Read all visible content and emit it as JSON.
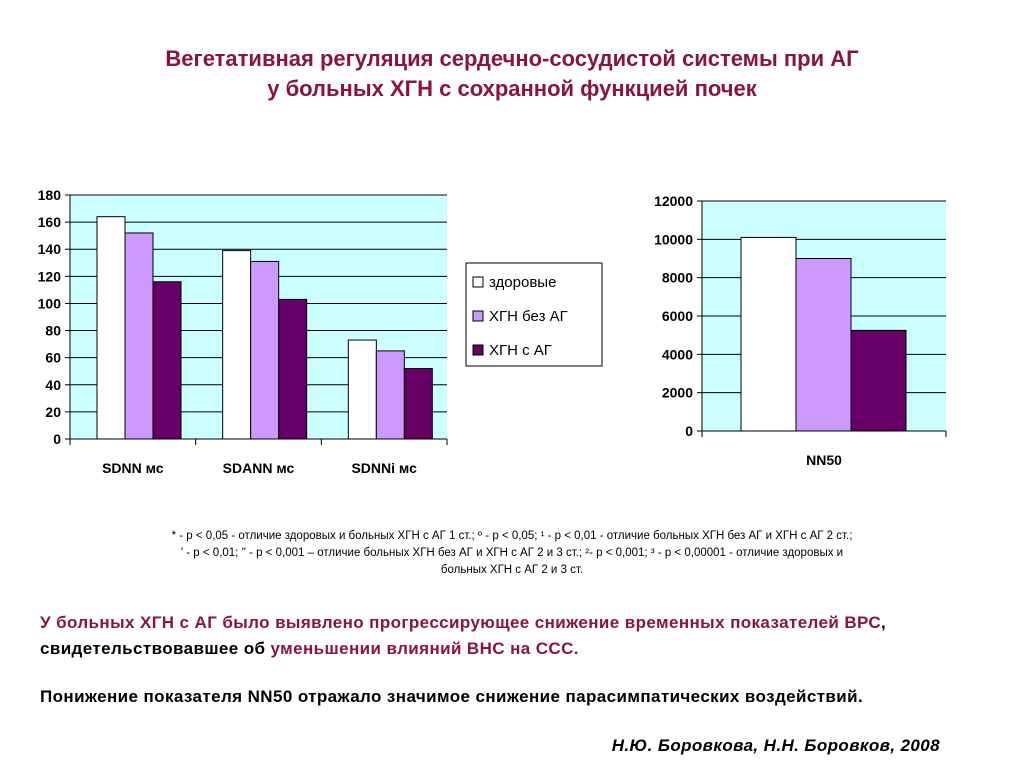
{
  "title": {
    "line1": "Вегетативная регуляция сердечно-сосудистой системы при АГ",
    "line2": "у больных ХГН с сохранной функцией почек"
  },
  "colors": {
    "title": "#8a1538",
    "plot_bg": "#ccffff",
    "healthy": "#ffffff",
    "hgn_no_ag": "#cc99ff",
    "hgn_ag": "#660066"
  },
  "chart_data": [
    {
      "type": "bar",
      "categories": [
        "SDNN мс",
        "SDANN мс",
        "SDNNi мс"
      ],
      "series": [
        {
          "name": "здоровые",
          "values": [
            164,
            139,
            73
          ]
        },
        {
          "name": "ХГН без АГ",
          "values": [
            152,
            131,
            65
          ]
        },
        {
          "name": "ХГН с АГ",
          "values": [
            116,
            103,
            52
          ]
        }
      ],
      "ylim": [
        0,
        180
      ],
      "yticks": [
        0,
        20,
        40,
        60,
        80,
        100,
        120,
        140,
        160,
        180
      ],
      "grid": true,
      "legend": "right"
    },
    {
      "type": "bar",
      "categories": [
        "NN50"
      ],
      "series": [
        {
          "name": "здоровые",
          "values": [
            10100
          ]
        },
        {
          "name": "ХГН без АГ",
          "values": [
            9000
          ]
        },
        {
          "name": "ХГН с АГ",
          "values": [
            5250
          ]
        }
      ],
      "ylim": [
        0,
        12000
      ],
      "yticks": [
        0,
        2000,
        4000,
        6000,
        8000,
        10000,
        12000
      ],
      "grid": true
    }
  ],
  "footnote": {
    "line1": "* - р < 0,05 - отличие здоровых и больных ХГН с АГ 1 ст.; º - р < 0,05; ¹ - р < 0,01 - отличие больных ХГН без АГ и ХГН с АГ 2 ст.;",
    "line2": "' - р < 0,01; '' - р < 0,001 – отличие больных ХГН без АГ и ХГН с АГ 2 и 3 ст.; ²- р < 0,001; ³ - р < 0,00001 - отличие здоровых и",
    "line3": "больных ХГН с АГ 2 и 3 ст."
  },
  "conclusion": {
    "part1": "У больных ХГН с АГ было выявлено прогрессирующее снижение временных показателей ВРС",
    "part2": ", свидетельствовавшее об ",
    "part3": "уменьшении влияний ВНС на ССС.",
    "para2": "Понижение показателя NN50 отражало значимое снижение парасимпатических воздействий."
  },
  "author": "Н.Ю. Боровкова, Н.Н. Боровков, 2008"
}
